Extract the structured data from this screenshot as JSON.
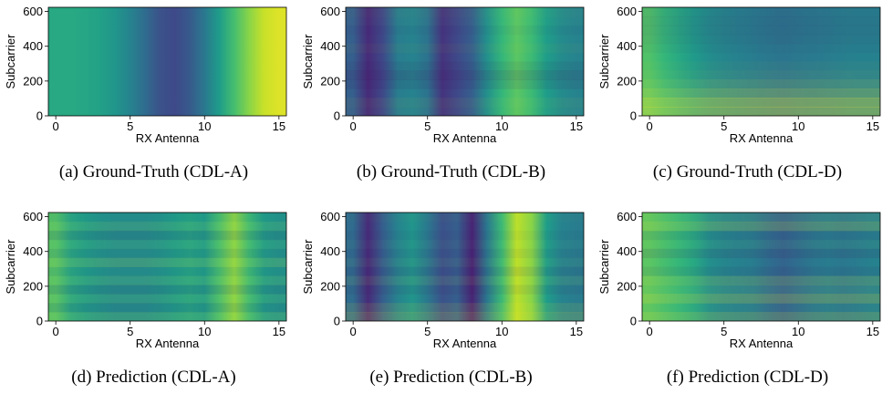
{
  "chart_data": [
    {
      "type": "heatmap",
      "caption": "(a) Ground-Truth (CDL-A)",
      "xlabel": "RX Antenna",
      "ylabel": "Subcarrier",
      "xlim": [
        -0.5,
        15.5
      ],
      "ylim": [
        0,
        624
      ],
      "xticks": [
        0,
        5,
        10,
        15
      ],
      "yticks": [
        0,
        200,
        400,
        600
      ],
      "colormap": "viridis",
      "column_values": [
        0.6,
        0.6,
        0.59,
        0.57,
        0.52,
        0.45,
        0.35,
        0.25,
        0.22,
        0.28,
        0.4,
        0.55,
        0.7,
        0.82,
        0.92,
        0.95
      ],
      "row_modulation": [
        0,
        0,
        0,
        0,
        0,
        0,
        0,
        0,
        0,
        0,
        0,
        0
      ]
    },
    {
      "type": "heatmap",
      "caption": "(b) Ground-Truth (CDL-B)",
      "xlabel": "RX Antenna",
      "ylabel": "Subcarrier",
      "xlim": [
        -0.5,
        15.5
      ],
      "ylim": [
        0,
        624
      ],
      "xticks": [
        0,
        5,
        10,
        15
      ],
      "yticks": [
        0,
        200,
        400,
        600
      ],
      "colormap": "viridis",
      "column_values": [
        0.3,
        0.12,
        0.22,
        0.42,
        0.45,
        0.38,
        0.15,
        0.22,
        0.3,
        0.5,
        0.66,
        0.74,
        0.68,
        0.55,
        0.48,
        0.45
      ],
      "row_modulation": [
        0.02,
        0.03,
        0.0,
        -0.05,
        -0.08,
        -0.04,
        0.0,
        0.02,
        0.0,
        -0.02,
        0.01,
        0.02
      ]
    },
    {
      "type": "heatmap",
      "caption": "(c) Ground-Truth (CDL-D)",
      "xlabel": "RX Antenna",
      "ylabel": "Subcarrier",
      "xlim": [
        -0.5,
        15.5
      ],
      "ylim": [
        0,
        624
      ],
      "xticks": [
        0,
        5,
        10,
        15
      ],
      "yticks": [
        0,
        200,
        400,
        600
      ],
      "colormap": "viridis",
      "column_values": [
        0.72,
        0.66,
        0.6,
        0.54,
        0.49,
        0.46,
        0.44,
        0.42,
        0.4,
        0.39,
        0.4,
        0.41,
        0.42,
        0.43,
        0.44,
        0.44
      ],
      "row_modulation": [
        0.3,
        0.22,
        0.14,
        0.08,
        0.04,
        0.02,
        0.0,
        -0.02,
        -0.04,
        -0.05,
        -0.05,
        -0.04
      ]
    },
    {
      "type": "heatmap",
      "caption": "(d) Prediction (CDL-A)",
      "xlabel": "RX Antenna",
      "ylabel": "Subcarrier",
      "xlim": [
        -0.5,
        15.5
      ],
      "ylim": [
        0,
        624
      ],
      "xticks": [
        0,
        5,
        10,
        15
      ],
      "yticks": [
        0,
        200,
        400,
        600
      ],
      "colormap": "viridis",
      "column_values": [
        0.72,
        0.6,
        0.55,
        0.52,
        0.5,
        0.5,
        0.5,
        0.52,
        0.55,
        0.58,
        0.55,
        0.7,
        0.82,
        0.68,
        0.55,
        0.52
      ],
      "row_modulation": [
        0.06,
        -0.05,
        0.04,
        -0.06,
        0.05,
        -0.03,
        0.07,
        -0.04,
        0.03,
        -0.06,
        0.05,
        -0.02
      ]
    },
    {
      "type": "heatmap",
      "caption": "(e) Prediction (CDL-B)",
      "xlabel": "RX Antenna",
      "ylabel": "Subcarrier",
      "xlim": [
        -0.5,
        15.5
      ],
      "ylim": [
        0,
        624
      ],
      "xticks": [
        0,
        5,
        10,
        15
      ],
      "yticks": [
        0,
        200,
        400,
        600
      ],
      "colormap": "viridis",
      "column_values": [
        0.35,
        0.12,
        0.3,
        0.45,
        0.52,
        0.4,
        0.25,
        0.3,
        0.1,
        0.4,
        0.68,
        0.9,
        0.82,
        0.55,
        0.45,
        0.42
      ],
      "row_modulation": [
        0.1,
        0.06,
        0.0,
        -0.04,
        0.04,
        -0.05,
        0.02,
        -0.03,
        0.01,
        -0.02,
        0.0,
        0.01
      ]
    },
    {
      "type": "heatmap",
      "caption": "(f) Prediction (CDL-D)",
      "xlabel": "RX Antenna",
      "ylabel": "Subcarrier",
      "xlim": [
        -0.5,
        15.5
      ],
      "ylim": [
        0,
        624
      ],
      "xticks": [
        0,
        5,
        10,
        15
      ],
      "yticks": [
        0,
        200,
        400,
        600
      ],
      "colormap": "viridis",
      "column_values": [
        0.74,
        0.7,
        0.66,
        0.6,
        0.5,
        0.46,
        0.44,
        0.42,
        0.36,
        0.32,
        0.36,
        0.4,
        0.42,
        0.4,
        0.42,
        0.44
      ],
      "row_modulation": [
        0.1,
        0.02,
        0.12,
        0.04,
        0.08,
        -0.04,
        0.0,
        -0.06,
        0.02,
        -0.04,
        0.1,
        0.04
      ]
    }
  ]
}
